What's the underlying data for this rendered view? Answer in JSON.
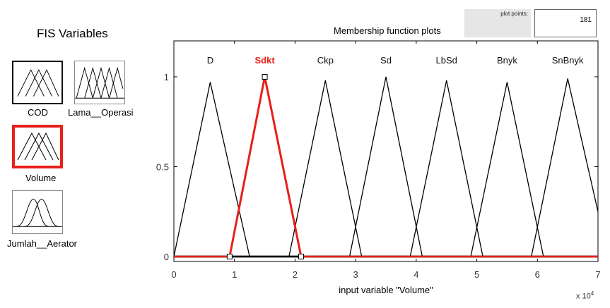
{
  "fis_variables": {
    "title": "FIS Variables",
    "items": [
      {
        "label": "COD",
        "kind": "input",
        "selected": false
      },
      {
        "label": "Lama__Operasi",
        "kind": "input",
        "selected": false
      },
      {
        "label": "Volume",
        "kind": "input",
        "selected": true
      },
      {
        "label": "Jumlah__Aerator",
        "kind": "output",
        "selected": false
      }
    ]
  },
  "plot_points": {
    "label": "plot points:",
    "value": "181"
  },
  "plot_title": "Membership function plots",
  "colors": {
    "selected": "#e8201a",
    "normal": "#000000",
    "panel": "#e6e6e6"
  },
  "chart_data": {
    "type": "line",
    "title": "Membership function plots",
    "xlabel": "input variable \"Volume\"",
    "x_multiplier": "x 10^4",
    "xlim": [
      0,
      7
    ],
    "ylim": [
      0,
      1
    ],
    "xticks": [
      "0",
      "1",
      "2",
      "3",
      "4",
      "5",
      "6",
      "7"
    ],
    "yticks": [
      "0",
      "0.5",
      "1"
    ],
    "series": [
      {
        "name": "D",
        "peak": 0.6,
        "points": [
          [
            0,
            0
          ],
          [
            0.6,
            0.97
          ],
          [
            1.25,
            0
          ]
        ],
        "selected": false
      },
      {
        "name": "Sdkt",
        "peak": 1.5,
        "points": [
          [
            0.92,
            0
          ],
          [
            1.5,
            1.0
          ],
          [
            2.1,
            0
          ]
        ],
        "selected": true
      },
      {
        "name": "Ckp",
        "peak": 2.5,
        "points": [
          [
            1.9,
            0
          ],
          [
            2.5,
            0.98
          ],
          [
            3.1,
            0
          ]
        ],
        "selected": false
      },
      {
        "name": "Sd",
        "peak": 3.5,
        "points": [
          [
            2.9,
            0
          ],
          [
            3.5,
            1.0
          ],
          [
            4.1,
            0
          ]
        ],
        "selected": false
      },
      {
        "name": "LbSd",
        "peak": 4.5,
        "points": [
          [
            3.9,
            0
          ],
          [
            4.5,
            0.98
          ],
          [
            5.1,
            0
          ]
        ],
        "selected": false
      },
      {
        "name": "Bnyk",
        "peak": 5.5,
        "points": [
          [
            4.9,
            0
          ],
          [
            5.5,
            0.97
          ],
          [
            6.1,
            0
          ]
        ],
        "selected": false
      },
      {
        "name": "SnBnyk",
        "peak": 6.5,
        "points": [
          [
            5.9,
            0
          ],
          [
            6.5,
            0.99
          ],
          [
            7.0,
            0.25
          ]
        ],
        "selected": false
      }
    ]
  }
}
